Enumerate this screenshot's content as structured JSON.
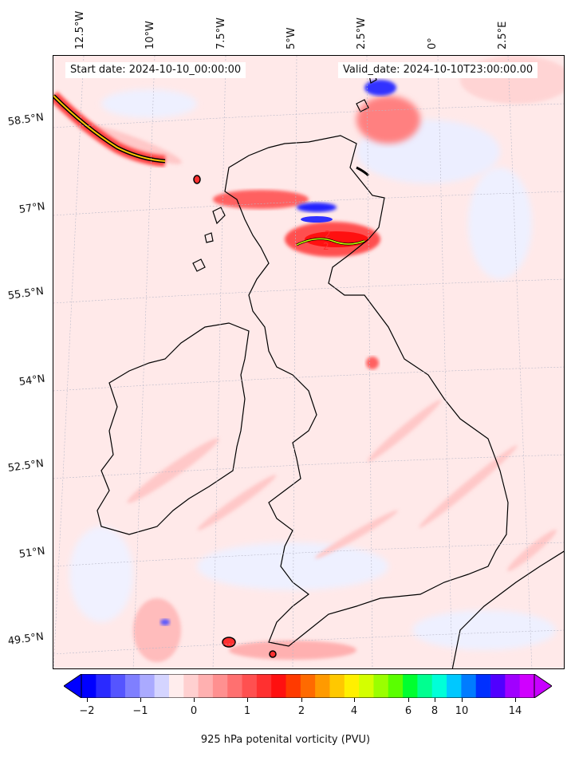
{
  "map": {
    "start_date": "Start date: 2024-10-10_00:00:00",
    "valid_date": "Valid_date: 2024-10-10T23:00:00.00",
    "longitude_labels": [
      "12.5°W",
      "10°W",
      "7.5°W",
      "5°W",
      "2.5°W",
      "0°",
      "2.5°E"
    ],
    "latitude_labels": [
      "58.5°N",
      "57°N",
      "55.5°N",
      "54°N",
      "52.5°N",
      "51°N",
      "49.5°N"
    ],
    "field_variable": "925 hPa potential vorticity",
    "contour_markers": [
      "2",
      "2"
    ]
  },
  "colorbar": {
    "label": "925 hPa potenital vorticity (PVU)",
    "tick_labels": [
      "−2",
      "−1",
      "0",
      "1",
      "2",
      "4",
      "6",
      "8",
      "10",
      "14"
    ],
    "colors": [
      "#0000ff",
      "#2a2aff",
      "#5555ff",
      "#7f7fff",
      "#aaaaff",
      "#d4d4ff",
      "#ffeded",
      "#ffd0d0",
      "#ffb0b0",
      "#ff9090",
      "#ff7070",
      "#ff5050",
      "#ff3030",
      "#ff1010",
      "#ff3a00",
      "#ff6a00",
      "#ff9a00",
      "#ffc800",
      "#fff000",
      "#d4ff00",
      "#9aff00",
      "#5aff00",
      "#00ff30",
      "#00ff90",
      "#00ffd8",
      "#00c8ff",
      "#007cff",
      "#0030ff",
      "#5000ff",
      "#a000ff",
      "#d000ff"
    ],
    "extend_low_color": "#0000ff",
    "extend_high_color": "#c800ff"
  }
}
